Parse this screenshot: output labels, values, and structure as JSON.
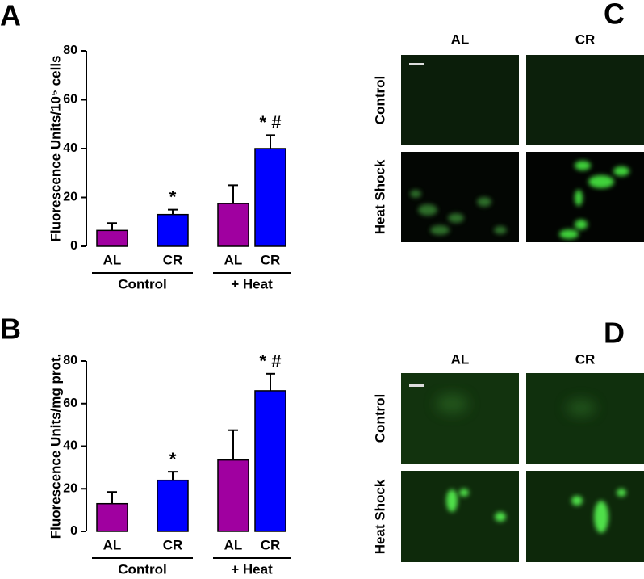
{
  "chart_data": [
    {
      "type": "bar",
      "panel": "A",
      "ylabel": "Fluorescence Units/10⁵ cells",
      "categories": [
        "AL",
        "CR",
        "AL",
        "CR"
      ],
      "groups": [
        "Control",
        "+ Heat"
      ],
      "values": [
        6.5,
        13,
        17.5,
        40
      ],
      "errors": [
        3,
        2,
        7.5,
        5.5
      ],
      "value_annotations": [
        null,
        "*",
        null,
        "* #"
      ],
      "colors": [
        "#a000a0",
        "#0000ff",
        "#a000a0",
        "#0000ff"
      ],
      "ylim": [
        0,
        80
      ],
      "yticks": [
        0,
        20,
        40,
        60,
        80
      ]
    },
    {
      "type": "bar",
      "panel": "B",
      "ylabel": "Fluorescence Units/mg prot.",
      "categories": [
        "AL",
        "CR",
        "AL",
        "CR"
      ],
      "groups": [
        "Control",
        "+ Heat"
      ],
      "values": [
        13,
        24,
        33.5,
        66
      ],
      "errors": [
        5.5,
        4,
        14,
        8
      ],
      "value_annotations": [
        null,
        "*",
        null,
        "* #"
      ],
      "colors": [
        "#a000a0",
        "#0000ff",
        "#a000a0",
        "#0000ff"
      ],
      "ylim": [
        0,
        80
      ],
      "yticks": [
        0,
        20,
        40,
        60,
        80
      ]
    }
  ],
  "micrographs": [
    {
      "panel": "C",
      "columns": [
        "AL",
        "CR"
      ],
      "rows": [
        "Control",
        "Heat Shock"
      ]
    },
    {
      "panel": "D",
      "columns": [
        "AL",
        "CR"
      ],
      "rows": [
        "Control",
        "Heat Shock"
      ]
    }
  ]
}
